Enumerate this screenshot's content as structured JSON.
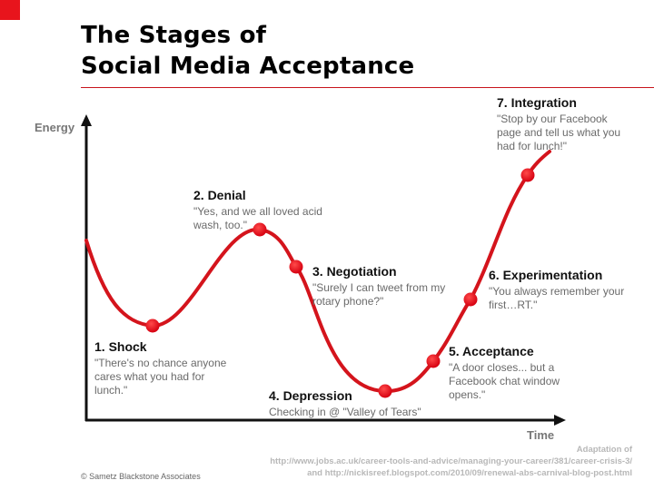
{
  "title_line1": "The Stages of",
  "title_line2": "Social Media Acceptance",
  "y_axis_label": "Energy",
  "x_axis_label": "Time",
  "stages": [
    {
      "heading": "1. Shock",
      "quote": "\"There's no chance anyone cares what you had for lunch.\""
    },
    {
      "heading": "2. Denial",
      "quote": "\"Yes, and we all loved acid wash, too.\""
    },
    {
      "heading": "3. Negotiation",
      "quote": "\"Surely I can tweet from my rotary phone?\""
    },
    {
      "heading": "4. Depression",
      "quote": "Checking in @ \"Valley of Tears\""
    },
    {
      "heading": "5. Acceptance",
      "quote": "\"A door closes... but a Facebook chat window opens.\""
    },
    {
      "heading": "6. Experimentation",
      "quote": "\"You always remember your first…RT.\""
    },
    {
      "heading": "7. Integration",
      "quote": "\"Stop by our Facebook page and tell us what you had for lunch!\""
    }
  ],
  "credit_line1": "Adaptation of",
  "credit_line2": "http://www.jobs.ac.uk/career-tools-and-advice/managing-your-career/381/career-crisis-3/",
  "credit_line3": "and http://nickisreef.blogspot.com/2010/09/renewal-abs-carnival-blog-post.html",
  "copyright": "© Sametz Blackstone Associates",
  "colors": {
    "accent": "#e8141c",
    "curve": "#d4141c"
  }
}
